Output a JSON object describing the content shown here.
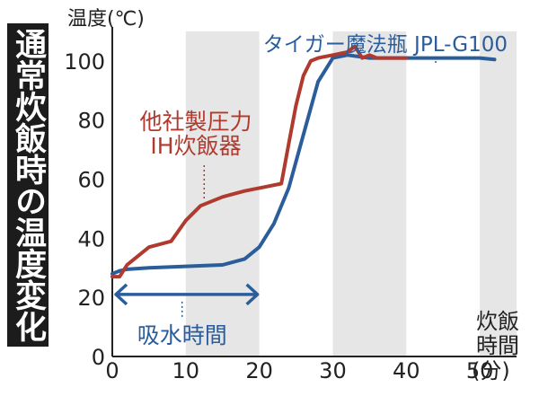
{
  "title": "通常炊飯時の温度変化",
  "chart_data": {
    "type": "line",
    "ylabel": "温度(℃)",
    "xlabel": [
      "炊飯",
      "時間",
      "(分)"
    ],
    "xlim": [
      0,
      55
    ],
    "ylim": [
      0,
      110
    ],
    "xticks": [
      0,
      10,
      20,
      30,
      40,
      50
    ],
    "yticks": [
      0,
      20,
      40,
      60,
      80,
      100
    ],
    "shaded_bands": [
      [
        10,
        20
      ],
      [
        30,
        40
      ],
      [
        50,
        55
      ]
    ],
    "grid": false,
    "series": [
      {
        "name": "タイガー魔法瓶 JPL-G100",
        "color": "#2a5d9a",
        "x": [
          0,
          1,
          2,
          5,
          10,
          15,
          18,
          20,
          22,
          24,
          26,
          28,
          30,
          32,
          35,
          40,
          45,
          48,
          50,
          52
        ],
        "y": [
          28,
          29,
          29.5,
          30,
          30.5,
          31,
          33,
          37,
          45,
          57,
          75,
          93,
          101,
          102,
          101,
          101,
          101,
          101,
          101,
          100.5
        ]
      },
      {
        "name": "他社製圧力IH炊飯器",
        "color": "#b03a2e",
        "x": [
          0,
          1,
          2,
          3,
          5,
          8,
          10,
          12,
          15,
          18,
          21,
          23,
          24,
          25,
          26,
          27,
          28,
          30,
          32,
          33,
          34,
          35,
          36,
          38,
          40
        ],
        "y": [
          27,
          27,
          31,
          33,
          37,
          39,
          46,
          51,
          54,
          56,
          57.5,
          58.5,
          72,
          85,
          95,
          100,
          101,
          102,
          103,
          105,
          101,
          102,
          101,
          101,
          101
        ]
      }
    ],
    "annotations": {
      "soak_label": "吸水時間",
      "soak_range": [
        0,
        20
      ],
      "soak_y": 21
    }
  }
}
